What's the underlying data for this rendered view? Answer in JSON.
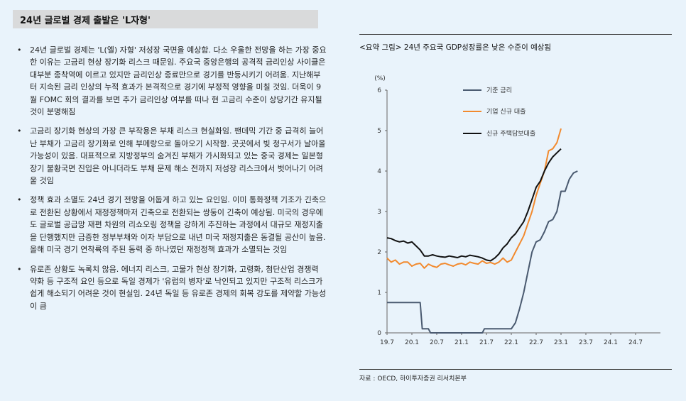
{
  "section_title": "24년 글로벌 경제 출발은 'L자형'",
  "bullet_marker": "•",
  "bullets": [
    "24년 글로벌 경제는 'L(엘) 자형' 저성장 국면을 예상함. 다소 우울한 전망을 하는 가장 중요한 이유는 고금리 현상 장기화 리스크 때문임. 주요국 중앙은행의 공격적 금리인상 사이클은 대부분 종착역에 이르고 있지만 금리인상 종료만으로 경기를 반등시키기 어려움. 지난해부터 지속된 금리 인상의 누적 효과가 본격적으로 경기에 부정적 영향을 미칠 것임. 더욱이 9월 FOMC 회의 결과를 보면 추가 금리인상 여부를 떠나 현 고금리 수준이 상당기간 유지될 것이 분명해짐",
    "고금리 장기화 현상의 가장 큰 부작용은 부채 리스크 현실화임. 팬데믹 기간 중 급격히 늘어난 부채가 고금리 장기화로 인해 부메랑으로 돌아오기 시작함. 곳곳에서 빚 청구서가 날아올 가능성이 있음. 대표적으로 지방정부의 숨겨진 부채가 가시화되고 있는 중국 경제는 일본형 장기 불황국면 진입은 아니더라도 부채 문제 해소 전까지 저성장 리스크에서 벗어나기 어려울 것임",
    "정책 효과 소멸도 24년 경기 전망을 어둡게 하고 있는 요인임. 이미 통화정책 기조가 긴축으로 전환된 상황에서 재정정책마저 긴축으로 전환되는 쌍둥이 긴축이 예상됨. 미국의 경우에도 글로벌 공급망 재편 차원의 리쇼오링 정책을 강하게 추진하는 과정에서 대규모 재정지출을 단행했지만 급증한 정부부채와 이자 부담으로 내년 미국 재정지출은 동결될 공산이 높음. 올해 미국 경기 연착륙의 주된 동력 중 하나였던 재정정책 효과가 소멸되는 것임",
    "유로존 상황도 녹록치 않음. 에너지 리스크, 고물가 현상 장기화, 고령화, 첨단산업 경쟁력 약화 등 구조적 요인 등으로 독일 경제가 '유럽의 병자'로 낙인되고 있지만 구조적 리스크가 쉽게 해소되기 어려운 것이 현실임. 24년 독일 등 유로존 경제의 회복 강도를 제약할 가능성이 큼"
  ],
  "chart": {
    "title": "<요약 그림> 24년 주요국 GDP성장률은 낮은 수준이 예상됨",
    "source": "자료 : OECD, 하이투자증권 리서치본부"
  },
  "chart_data": {
    "type": "line",
    "ylabel": "(%)",
    "ylim": [
      0,
      6
    ],
    "yticks": [
      "0",
      "1",
      "2",
      "3",
      "4",
      "5",
      "6"
    ],
    "xlim": [
      0,
      66
    ],
    "xticks": [
      {
        "label": "19.7",
        "x": 0
      },
      {
        "label": "20.1",
        "x": 6
      },
      {
        "label": "20.7",
        "x": 12
      },
      {
        "label": "21.1",
        "x": 18
      },
      {
        "label": "21.7",
        "x": 24
      },
      {
        "label": "22.1",
        "x": 30
      },
      {
        "label": "22.7",
        "x": 36
      },
      {
        "label": "23.1",
        "x": 42
      },
      {
        "label": "23.7",
        "x": 48
      },
      {
        "label": "24.1",
        "x": 54
      },
      {
        "label": "24.7",
        "x": 60
      }
    ],
    "series": [
      {
        "name": "기준 금리",
        "color": "#4a5a70",
        "points": [
          [
            0,
            0.75
          ],
          [
            1,
            0.75
          ],
          [
            2,
            0.75
          ],
          [
            3,
            0.75
          ],
          [
            4,
            0.75
          ],
          [
            5,
            0.75
          ],
          [
            6,
            0.75
          ],
          [
            7,
            0.75
          ],
          [
            8,
            0.75
          ],
          [
            8.5,
            0.1
          ],
          [
            10,
            0.1
          ],
          [
            10.5,
            0
          ],
          [
            11,
            0
          ],
          [
            18,
            0
          ],
          [
            23,
            0
          ],
          [
            23.5,
            0.1
          ],
          [
            30,
            0.1
          ],
          [
            31,
            0.25
          ],
          [
            32,
            0.6
          ],
          [
            33,
            1.0
          ],
          [
            34,
            1.5
          ],
          [
            35,
            2.0
          ],
          [
            36,
            2.25
          ],
          [
            37,
            2.3
          ],
          [
            38,
            2.5
          ],
          [
            39,
            2.75
          ],
          [
            40,
            2.8
          ],
          [
            41,
            3.0
          ],
          [
            42,
            3.5
          ],
          [
            43,
            3.5
          ],
          [
            44,
            3.8
          ],
          [
            45,
            3.95
          ],
          [
            46,
            4.0
          ]
        ]
      },
      {
        "name": "기업 신규 대출",
        "color": "#f28a2e",
        "points": [
          [
            0,
            1.85
          ],
          [
            1,
            1.75
          ],
          [
            2,
            1.8
          ],
          [
            3,
            1.7
          ],
          [
            4,
            1.75
          ],
          [
            5,
            1.75
          ],
          [
            6,
            1.65
          ],
          [
            7,
            1.7
          ],
          [
            8,
            1.72
          ],
          [
            9,
            1.6
          ],
          [
            10,
            1.7
          ],
          [
            11,
            1.65
          ],
          [
            12,
            1.62
          ],
          [
            13,
            1.7
          ],
          [
            14,
            1.72
          ],
          [
            15,
            1.68
          ],
          [
            16,
            1.65
          ],
          [
            17,
            1.7
          ],
          [
            18,
            1.72
          ],
          [
            19,
            1.68
          ],
          [
            20,
            1.75
          ],
          [
            21,
            1.72
          ],
          [
            22,
            1.7
          ],
          [
            23,
            1.78
          ],
          [
            24,
            1.72
          ],
          [
            25,
            1.74
          ],
          [
            26,
            1.7
          ],
          [
            27,
            1.75
          ],
          [
            28,
            1.85
          ],
          [
            29,
            1.75
          ],
          [
            30,
            1.8
          ],
          [
            31,
            2.0
          ],
          [
            32,
            2.2
          ],
          [
            33,
            2.4
          ],
          [
            34,
            2.7
          ],
          [
            35,
            3.0
          ],
          [
            36,
            3.4
          ],
          [
            37,
            3.7
          ],
          [
            38,
            4.0
          ],
          [
            39,
            4.5
          ],
          [
            40,
            4.55
          ],
          [
            41,
            4.7
          ],
          [
            42,
            5.05
          ]
        ]
      },
      {
        "name": "신규 주택담보대출",
        "color": "#111111",
        "points": [
          [
            0,
            2.35
          ],
          [
            1,
            2.33
          ],
          [
            2,
            2.28
          ],
          [
            3,
            2.25
          ],
          [
            4,
            2.27
          ],
          [
            5,
            2.22
          ],
          [
            6,
            2.25
          ],
          [
            7,
            2.15
          ],
          [
            8,
            2.05
          ],
          [
            9,
            1.9
          ],
          [
            10,
            1.9
          ],
          [
            11,
            1.93
          ],
          [
            12,
            1.9
          ],
          [
            13,
            1.88
          ],
          [
            14,
            1.87
          ],
          [
            15,
            1.9
          ],
          [
            16,
            1.88
          ],
          [
            17,
            1.86
          ],
          [
            18,
            1.9
          ],
          [
            19,
            1.88
          ],
          [
            20,
            1.92
          ],
          [
            21,
            1.9
          ],
          [
            22,
            1.88
          ],
          [
            23,
            1.85
          ],
          [
            24,
            1.8
          ],
          [
            25,
            1.78
          ],
          [
            26,
            1.85
          ],
          [
            27,
            1.95
          ],
          [
            28,
            2.1
          ],
          [
            29,
            2.2
          ],
          [
            30,
            2.35
          ],
          [
            31,
            2.45
          ],
          [
            32,
            2.6
          ],
          [
            33,
            2.75
          ],
          [
            34,
            3.0
          ],
          [
            35,
            3.3
          ],
          [
            36,
            3.6
          ],
          [
            37,
            3.75
          ],
          [
            38,
            4.0
          ],
          [
            39,
            4.2
          ],
          [
            40,
            4.35
          ],
          [
            41,
            4.45
          ],
          [
            42,
            4.55
          ]
        ]
      }
    ]
  }
}
